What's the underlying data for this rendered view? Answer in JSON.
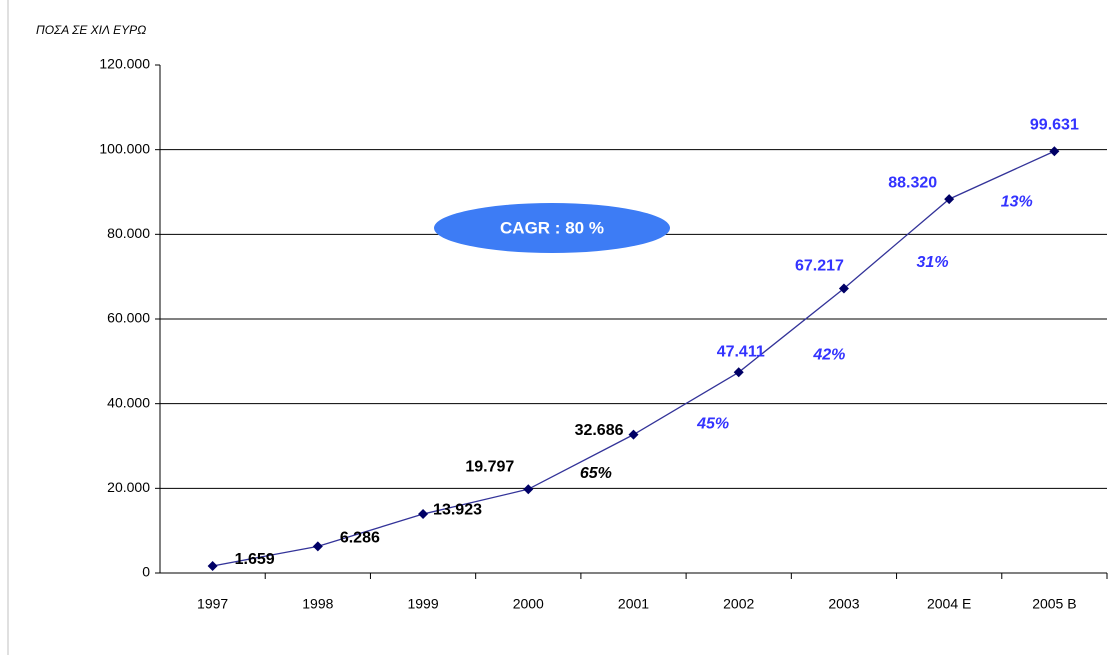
{
  "chart_data": {
    "type": "line",
    "y_axis_label": "ΠΟΣΑ ΣΕ ΧΙΛ ΕΥΡΩ",
    "categories": [
      "1997",
      "1998",
      "1999",
      "2000",
      "2001",
      "2002",
      "2003",
      "2004 E",
      "2005 B"
    ],
    "series": [
      {
        "name": "ΠΟΣΑ",
        "color": "#333399",
        "marker_color": "#000066",
        "values": [
          1659,
          6286,
          13923,
          19797,
          32686,
          47411,
          67217,
          88320,
          99631
        ],
        "value_labels": [
          "1.659",
          "6.286",
          "13.923",
          "19.797",
          "32.686",
          "47.411",
          "67.217",
          "88.320",
          "99.631"
        ],
        "value_label_colors": [
          "#000000",
          "#000000",
          "#000000",
          "#000000",
          "#000000",
          "#3333ff",
          "#3333ff",
          "#3333ff",
          "#3333ff"
        ]
      }
    ],
    "ylim": [
      0,
      120000
    ],
    "yticks": [
      0,
      {
        "value": 20000,
        "label": "20.000"
      },
      {
        "value": 40000,
        "label": "40.000"
      },
      {
        "value": 60000,
        "label": "60.000"
      },
      {
        "value": 80000,
        "label": "80.000"
      },
      {
        "value": 100000,
        "label": "100.000"
      },
      {
        "value": 120000,
        "label": "120.000"
      }
    ],
    "grid": true,
    "annotations": [
      "65%",
      "45%",
      "42%",
      "31%",
      "13%"
    ],
    "annotation_colors": [
      "#000000",
      "#3333ff",
      "#3333ff",
      "#3333ff",
      "#3333ff"
    ],
    "badge": "CAGR : 80 %",
    "badge_color": "#3d7cf5"
  }
}
